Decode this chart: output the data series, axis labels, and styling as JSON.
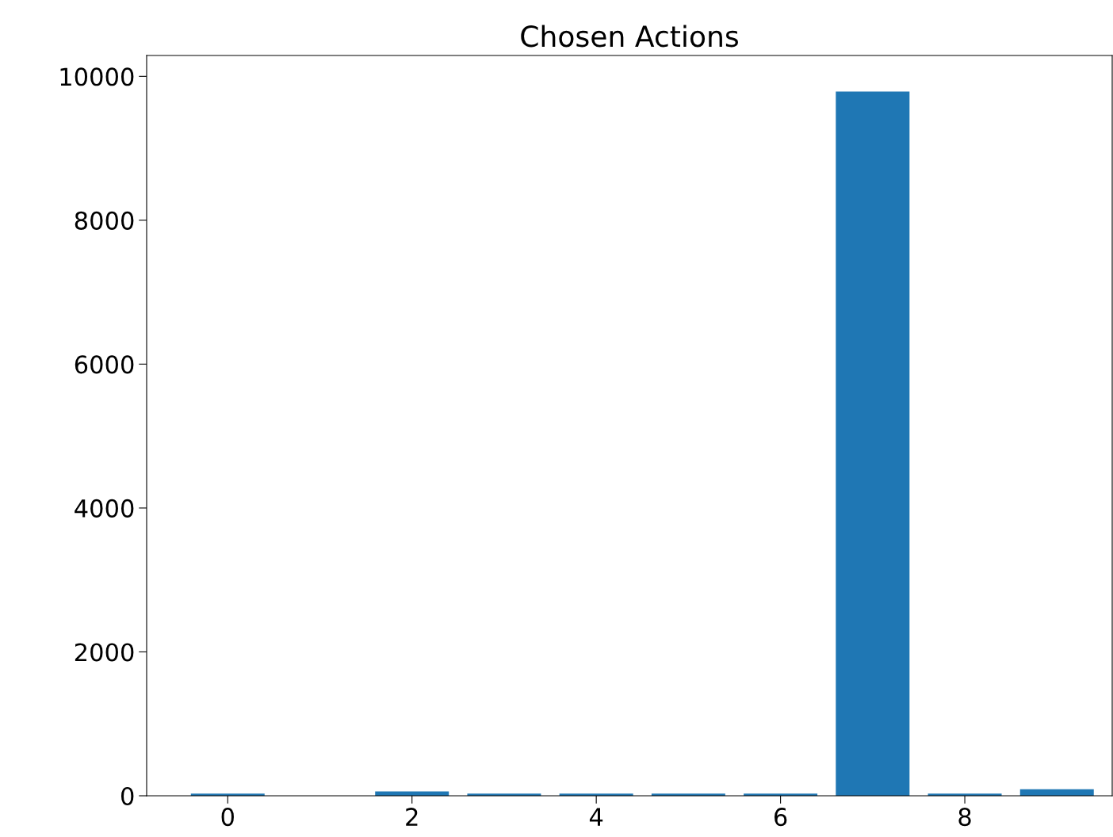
{
  "chart_data": {
    "type": "bar",
    "title": "Chosen Actions",
    "x": [
      0,
      1,
      2,
      3,
      4,
      5,
      6,
      7,
      8,
      9
    ],
    "values": [
      30,
      0,
      60,
      30,
      30,
      30,
      30,
      9790,
      30,
      90
    ],
    "color": "#1f77b4",
    "xlim": [
      -0.88,
      9.6
    ],
    "xticks": [
      0,
      2,
      4,
      6,
      8
    ],
    "ylim": [
      0,
      10290
    ],
    "yticks": [
      0,
      2000,
      4000,
      6000,
      8000,
      10000
    ],
    "grid": false
  }
}
